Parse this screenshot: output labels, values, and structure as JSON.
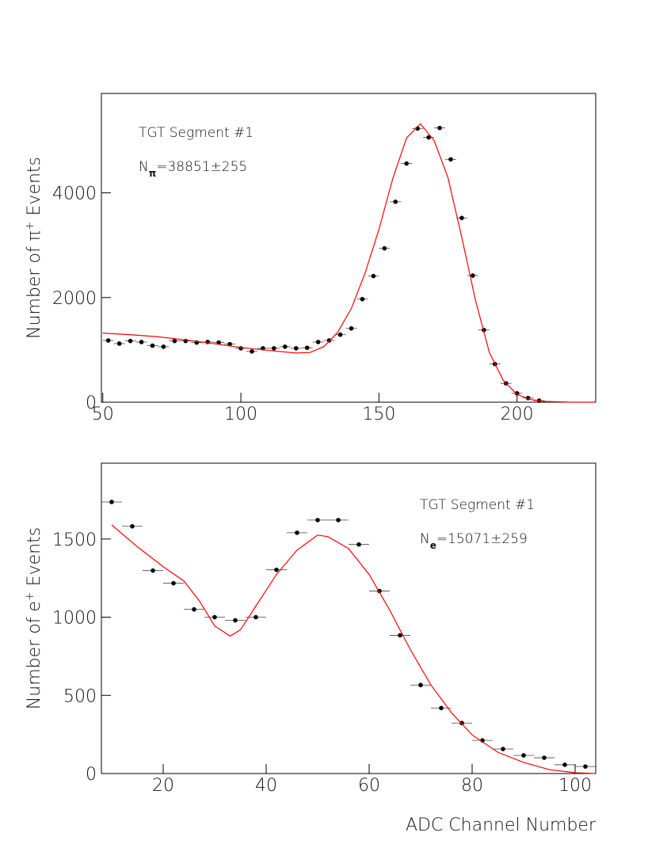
{
  "chart_data": [
    {
      "type": "scatter",
      "annotation": "TGT Segment #1",
      "result": [
        "N",
        "π",
        "=38851±255"
      ],
      "ylabel": [
        "Number of π",
        "+",
        " Events"
      ],
      "xlim": [
        49.5,
        228.5
      ],
      "xticks": [
        50,
        100,
        150,
        200
      ],
      "ylim": [
        0,
        5900
      ],
      "yticks": [
        0,
        2000,
        4000
      ],
      "series": [
        {
          "type": "scatter",
          "color": "#000000",
          "xerr": 2,
          "x": [
            52,
            56,
            60,
            64,
            68,
            72,
            76,
            80,
            84,
            88,
            92,
            96,
            100,
            104,
            108,
            112,
            116,
            120,
            124,
            128,
            132,
            136,
            140,
            144,
            148,
            152,
            156,
            160,
            164,
            168,
            172,
            176,
            180,
            184,
            188,
            192,
            196,
            200,
            204,
            208
          ],
          "values": [
            1180,
            1120,
            1170,
            1150,
            1080,
            1060,
            1170,
            1170,
            1140,
            1150,
            1140,
            1110,
            1030,
            970,
            1030,
            1030,
            1060,
            1030,
            1040,
            1150,
            1180,
            1290,
            1410,
            1970,
            2410,
            2940,
            3830,
            4560,
            5230,
            5060,
            5240,
            4640,
            3520,
            2420,
            1380,
            730,
            360,
            170,
            80,
            30
          ]
        },
        {
          "type": "line",
          "color": "#ff0000",
          "x": [
            50,
            60,
            70,
            80,
            90,
            100,
            110,
            120,
            125,
            130,
            135,
            140,
            145,
            150,
            155,
            160,
            165,
            170,
            175,
            180,
            185,
            190,
            195,
            200,
            205,
            210,
            220,
            228
          ],
          "values": [
            1320,
            1290,
            1250,
            1190,
            1120,
            1045,
            990,
            940,
            950,
            1060,
            1330,
            1790,
            2470,
            3300,
            4270,
            5050,
            5320,
            5000,
            4290,
            3150,
            1940,
            950,
            420,
            150,
            50,
            15,
            0,
            0
          ]
        }
      ]
    },
    {
      "type": "scatter",
      "annotation": "TGT Segment #1",
      "result": [
        "N",
        "e",
        "=15071±259"
      ],
      "ylabel": [
        "Number of e",
        "+",
        " Events"
      ],
      "xlabel": "ADC Channel Number",
      "xlim": [
        8,
        104
      ],
      "xticks": [
        20,
        40,
        60,
        80,
        100
      ],
      "ylim": [
        0,
        1985
      ],
      "yticks": [
        0,
        500,
        1000,
        1500
      ],
      "series": [
        {
          "type": "scatter",
          "color": "#000000",
          "xerr": 2,
          "x": [
            10,
            14,
            18,
            22,
            26,
            30,
            34,
            38,
            42,
            46,
            50,
            54,
            58,
            62,
            66,
            70,
            74,
            78,
            82,
            86,
            90,
            94,
            98,
            102
          ],
          "values": [
            1737,
            1581,
            1298,
            1217,
            1050,
            1000,
            980,
            1000,
            1303,
            1540,
            1621,
            1621,
            1465,
            1167,
            884,
            566,
            419,
            323,
            212,
            157,
            116,
            101,
            56,
            45
          ]
        },
        {
          "type": "line",
          "color": "#ff0000",
          "x": [
            10,
            15,
            20,
            24,
            27,
            30,
            33,
            35,
            38,
            42,
            46,
            50,
            52,
            56,
            60,
            64,
            68,
            72,
            76,
            80,
            85,
            90,
            95,
            100,
            104
          ],
          "values": [
            1590,
            1450,
            1323,
            1232,
            1106,
            944,
            879,
            919,
            1071,
            1273,
            1429,
            1525,
            1515,
            1439,
            1273,
            1045,
            793,
            566,
            389,
            247,
            136,
            71,
            25,
            5,
            0
          ]
        }
      ]
    }
  ]
}
